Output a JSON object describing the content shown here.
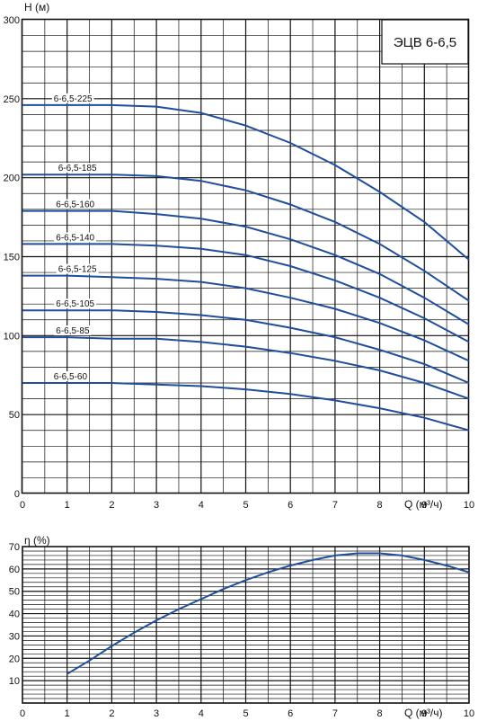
{
  "colors": {
    "grid": "#111111",
    "curve": "#1f4e9c",
    "background": "#ffffff"
  },
  "chart_data": [
    {
      "type": "line",
      "title": "ЭЦВ 6-6,5",
      "xlabel": "Q (м³/ч)",
      "ylabel": "Н (м)",
      "xlim": [
        0,
        10
      ],
      "ylim": [
        0,
        300
      ],
      "x_ticks": [
        "0",
        "1",
        "2",
        "3",
        "4",
        "5",
        "6",
        "7",
        "8",
        "9",
        "10"
      ],
      "y_ticks": [
        "0",
        "50",
        "100",
        "150",
        "200",
        "250",
        "300"
      ],
      "grid": true,
      "x": [
        0,
        1,
        2,
        3,
        4,
        5,
        6,
        7,
        8,
        9,
        10
      ],
      "series": [
        {
          "name": "6-6,5-225",
          "values": [
            246,
            246,
            246,
            245,
            241,
            233,
            222,
            208,
            191,
            172,
            148
          ]
        },
        {
          "name": "6-6,5-185",
          "values": [
            202,
            202,
            202,
            201,
            198,
            192,
            183,
            172,
            158,
            141,
            122
          ]
        },
        {
          "name": "6-6,5-160",
          "values": [
            179,
            179,
            179,
            177,
            174,
            169,
            161,
            151,
            139,
            124,
            107
          ]
        },
        {
          "name": "6-6,5-140",
          "values": [
            158,
            158,
            158,
            157,
            155,
            151,
            144,
            135,
            124,
            111,
            96
          ]
        },
        {
          "name": "6-6,5-125",
          "values": [
            138,
            138,
            137,
            136,
            134,
            130,
            124,
            117,
            108,
            97,
            84
          ]
        },
        {
          "name": "6-6,5-105",
          "values": [
            116,
            116,
            116,
            115,
            113,
            110,
            105,
            99,
            91,
            82,
            70
          ]
        },
        {
          "name": "6-6,5-85",
          "values": [
            99,
            99,
            98,
            98,
            96,
            93,
            89,
            84,
            78,
            70,
            60
          ]
        },
        {
          "name": "6-6,5-60",
          "values": [
            70,
            70,
            70,
            69,
            68,
            66,
            63,
            59,
            54,
            48,
            40
          ]
        }
      ]
    },
    {
      "type": "line",
      "title": "",
      "xlabel": "Q (м³/ч)",
      "ylabel": "η (%)",
      "xlim": [
        0,
        10
      ],
      "ylim": [
        0,
        70
      ],
      "x_ticks": [
        "0",
        "1",
        "2",
        "3",
        "4",
        "5",
        "6",
        "7",
        "8",
        "9",
        "10"
      ],
      "y_ticks": [
        "10",
        "20",
        "30",
        "40",
        "50",
        "60",
        "70"
      ],
      "grid": true,
      "series": [
        {
          "name": "",
          "x": [
            1,
            1.5,
            2,
            2.5,
            3,
            3.5,
            4,
            4.5,
            5,
            5.5,
            6,
            6.5,
            7,
            7.5,
            8,
            8.5,
            9,
            9.5,
            10
          ],
          "values": [
            13,
            19,
            25.5,
            31.5,
            37,
            42,
            46.5,
            51,
            55,
            58.5,
            61.5,
            64,
            66,
            67,
            67,
            66,
            64,
            61.5,
            58.5
          ]
        }
      ]
    }
  ]
}
